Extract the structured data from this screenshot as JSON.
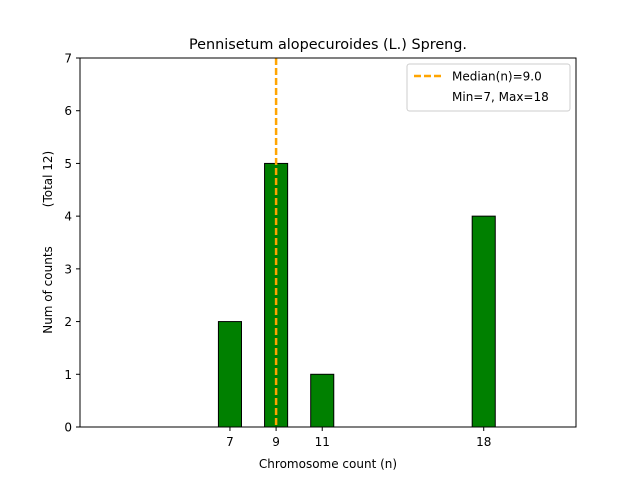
{
  "chart_data": {
    "type": "bar",
    "title": "Pennisetum alopecuroides (L.) Spreng.",
    "xlabel": "Chromosome count (n)",
    "ylabel_left": "Num of counts",
    "ylabel_right": "(Total 12)",
    "x": [
      7,
      9,
      11,
      18
    ],
    "values": [
      2,
      5,
      1,
      4
    ],
    "xlim": [
      0.5,
      22
    ],
    "ylim": [
      0,
      7
    ],
    "xticks": [
      7,
      9,
      11,
      18
    ],
    "yticks": [
      0,
      1,
      2,
      3,
      4,
      5,
      6,
      7
    ],
    "bar_width": 1,
    "bar_color": "#008000",
    "bar_edge_color": "#000000",
    "median": {
      "value": 9.0,
      "color": "#FFA500",
      "style": "dashed"
    },
    "legend": {
      "position": "top-right",
      "entries": [
        "Median(n)=9.0",
        "Min=7, Max=18"
      ]
    },
    "grid": false
  }
}
